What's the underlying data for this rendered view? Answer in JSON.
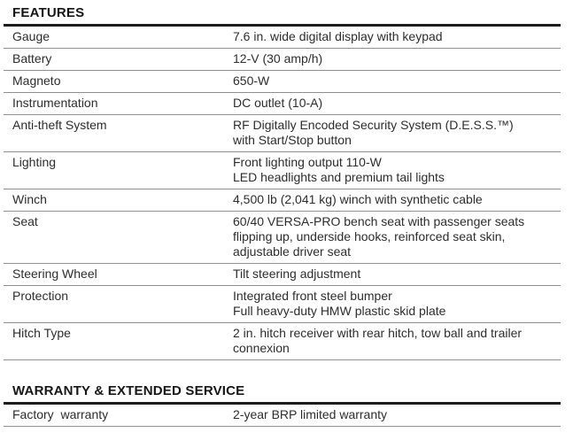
{
  "sections": [
    {
      "title": "FEATURES",
      "rows": [
        {
          "label": "Gauge",
          "value": [
            "7.6 in. wide digital display with keypad"
          ]
        },
        {
          "label": "Battery",
          "value": [
            "12-V (30 amp/h)"
          ]
        },
        {
          "label": "Magneto",
          "value": [
            "650-W"
          ]
        },
        {
          "label": "Instrumentation",
          "value": [
            "DC outlet (10-A)"
          ]
        },
        {
          "label": "Anti-theft System",
          "value": [
            "RF Digitally Encoded Security System (D.E.S.S.™)",
            "with Start/Stop button"
          ]
        },
        {
          "label": "Lighting",
          "value": [
            "Front lighting output 110-W",
            "LED headlights and premium tail lights"
          ]
        },
        {
          "label": "Winch",
          "value": [
            "4,500 lb (2,041 kg) winch with synthetic cable"
          ]
        },
        {
          "label": "Seat",
          "value": [
            "60/40 VERSA-PRO bench seat with passenger seats",
            "flipping up, underside hooks, reinforced seat skin,",
            "adjustable driver seat"
          ]
        },
        {
          "label": "Steering Wheel",
          "value": [
            "Tilt steering adjustment"
          ]
        },
        {
          "label": "Protection",
          "value": [
            "Integrated front steel bumper",
            "Full heavy-duty HMW plastic skid plate"
          ]
        },
        {
          "label": "Hitch Type",
          "value": [
            "2 in. hitch receiver with rear hitch, tow ball and trailer",
            "connexion"
          ]
        }
      ]
    },
    {
      "title": "WARRANTY & EXTENDED SERVICE",
      "rows": [
        {
          "label": "Factory  warranty",
          "value": [
            "2-year BRP limited warranty"
          ]
        }
      ]
    }
  ],
  "colors": {
    "heavy_rule": "#1c1c1c",
    "light_rule": "#8f8f8f",
    "text": "#2d2d2d"
  }
}
